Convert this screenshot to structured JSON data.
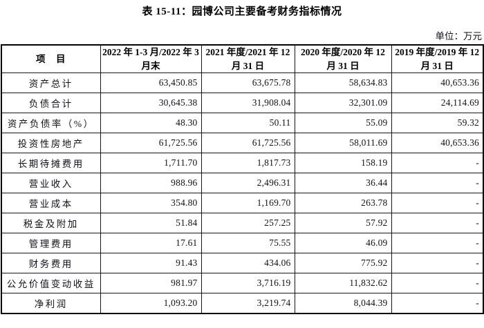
{
  "doc": {
    "title": "表 15-11：园博公司主要备考财务指标情况",
    "unit_label": "单位：万元"
  },
  "table": {
    "headers": [
      "项　目",
      "2022 年 1-3 月/2022 年 3 月末",
      "2021 年度/2021 年 12 月 31 日",
      "2020 年度/2020 年 12 月 31 日",
      "2019 年度/2019 年 12 月 31 日"
    ],
    "rows": [
      {
        "label": "资产总计",
        "values": [
          "63,450.85",
          "63,675.78",
          "58,634.83",
          "40,653.36"
        ]
      },
      {
        "label": "负债合计",
        "values": [
          "30,645.38",
          "31,908.04",
          "32,301.09",
          "24,114.69"
        ]
      },
      {
        "label": "资产负债率（%）",
        "values": [
          "48.30",
          "50.11",
          "55.09",
          "59.32"
        ]
      },
      {
        "label": "投资性房地产",
        "values": [
          "61,725.56",
          "61,725.56",
          "58,011.69",
          "40,653.36"
        ]
      },
      {
        "label": "长期待摊费用",
        "values": [
          "1,711.70",
          "1,817.73",
          "158.19",
          "-"
        ]
      },
      {
        "label": "营业收入",
        "values": [
          "988.96",
          "2,496.31",
          "36.44",
          "-"
        ]
      },
      {
        "label": "营业成本",
        "values": [
          "354.80",
          "1,169.70",
          "263.78",
          "-"
        ]
      },
      {
        "label": "税金及附加",
        "values": [
          "51.84",
          "257.25",
          "57.92",
          "-"
        ]
      },
      {
        "label": "管理费用",
        "values": [
          "17.61",
          "75.55",
          "46.09",
          "-"
        ]
      },
      {
        "label": "财务费用",
        "values": [
          "91.43",
          "434.06",
          "775.92",
          "-"
        ]
      },
      {
        "label": "公允价值变动收益",
        "values": [
          "981.97",
          "3,716.19",
          "11,832.62",
          "-"
        ]
      },
      {
        "label": "净利润",
        "values": [
          "1,093.20",
          "3,219.74",
          "8,044.39",
          "-"
        ]
      }
    ]
  }
}
